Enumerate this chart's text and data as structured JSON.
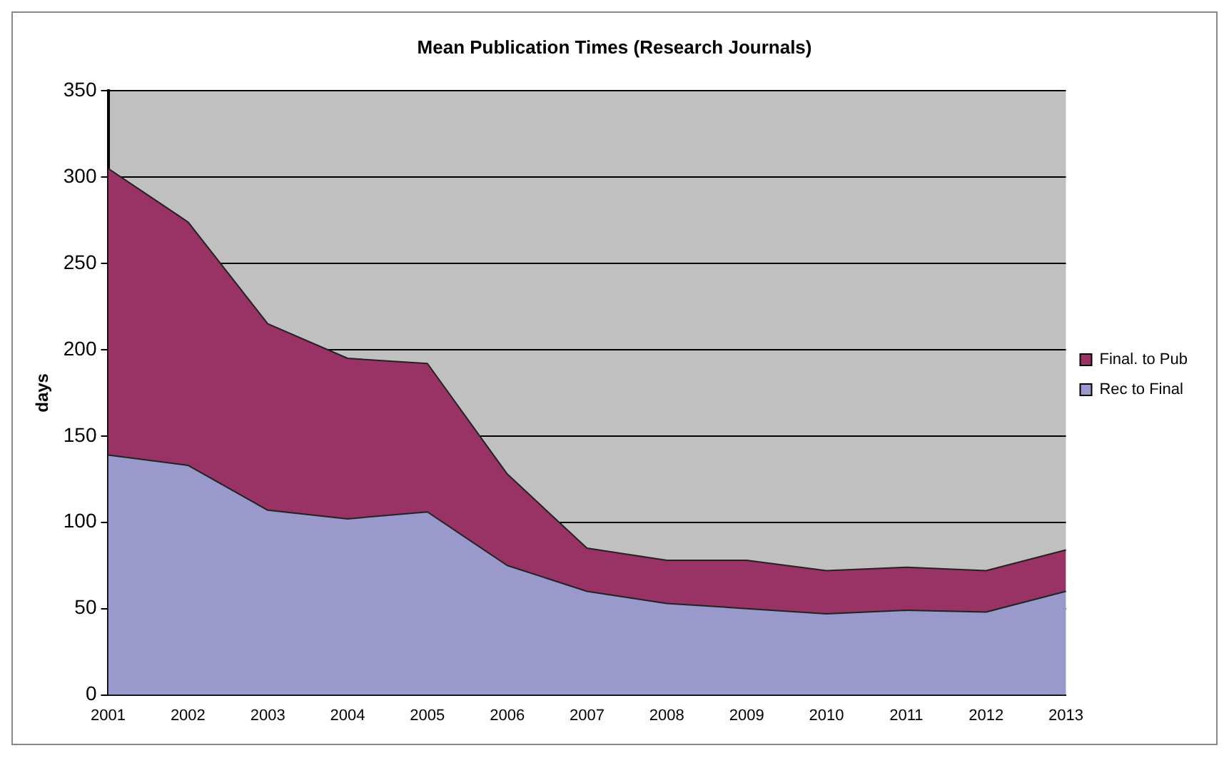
{
  "chart_data": {
    "type": "area",
    "stacked": true,
    "title": "Mean Publication Times (Research Journals)",
    "ylabel": "days",
    "categories": [
      "2001",
      "2002",
      "2003",
      "2004",
      "2005",
      "2006",
      "2007",
      "2008",
      "2009",
      "2010",
      "2011",
      "2012",
      "2013"
    ],
    "series": [
      {
        "name": "Rec to Final",
        "color": "#9999cc",
        "values": [
          139,
          133,
          107,
          102,
          106,
          75,
          60,
          53,
          50,
          47,
          49,
          48,
          60
        ]
      },
      {
        "name": "Final. to Pub",
        "color": "#993366",
        "values": [
          166,
          141,
          108,
          93,
          86,
          53,
          25,
          25,
          28,
          25,
          25,
          24,
          24
        ]
      }
    ],
    "ylim": [
      0,
      350
    ],
    "yticks": [
      0,
      50,
      100,
      150,
      200,
      250,
      300,
      350
    ],
    "grid": "y",
    "legend": "right"
  }
}
